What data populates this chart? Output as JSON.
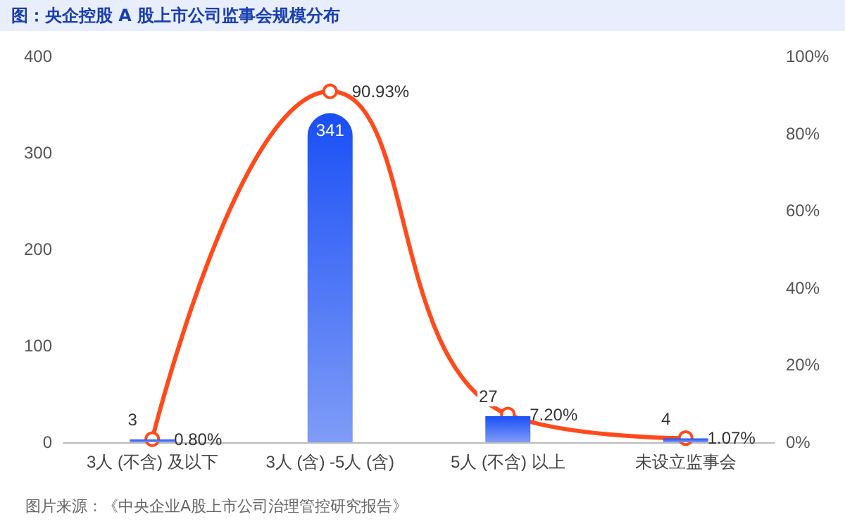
{
  "chart_data": {
    "type": "bar",
    "title": "图：央企控股 A 股上市公司监事会规模分布",
    "categories": [
      "3人 (不含) 及以下",
      "3人 (含) -5人 (含)",
      "5人 (不含) 以上",
      "未设立监事会"
    ],
    "series": [
      {
        "color": "#1a4ff5",
        "values": [
          3,
          341,
          27,
          4
        ],
        "value_labels": [
          "3",
          "341",
          "27",
          "4"
        ]
      },
      {
        "type": "line",
        "axis": "y2",
        "color": "#ff4a1c",
        "values": [
          0.8,
          90.93,
          7.2,
          1.07
        ],
        "value_labels": [
          "0.80%",
          "90.93%",
          "7.20%",
          "1.07%"
        ]
      }
    ],
    "ylim": [
      0,
      400
    ],
    "yticks": [
      0,
      100,
      200,
      300,
      400
    ],
    "y2lim": [
      0,
      100
    ],
    "y2ticks": [
      {
        "value": 0,
        "label": "0%"
      },
      {
        "value": 20,
        "label": "20%"
      },
      {
        "value": 40,
        "label": "40%"
      },
      {
        "value": 60,
        "label": "60%"
      },
      {
        "value": 80,
        "label": "80%"
      },
      {
        "value": 100,
        "label": "100%"
      }
    ],
    "marker": "circle",
    "grid": false,
    "annotations": [
      "图片来源：《中央企业A股上市公司治理管控研究报告》"
    ]
  }
}
